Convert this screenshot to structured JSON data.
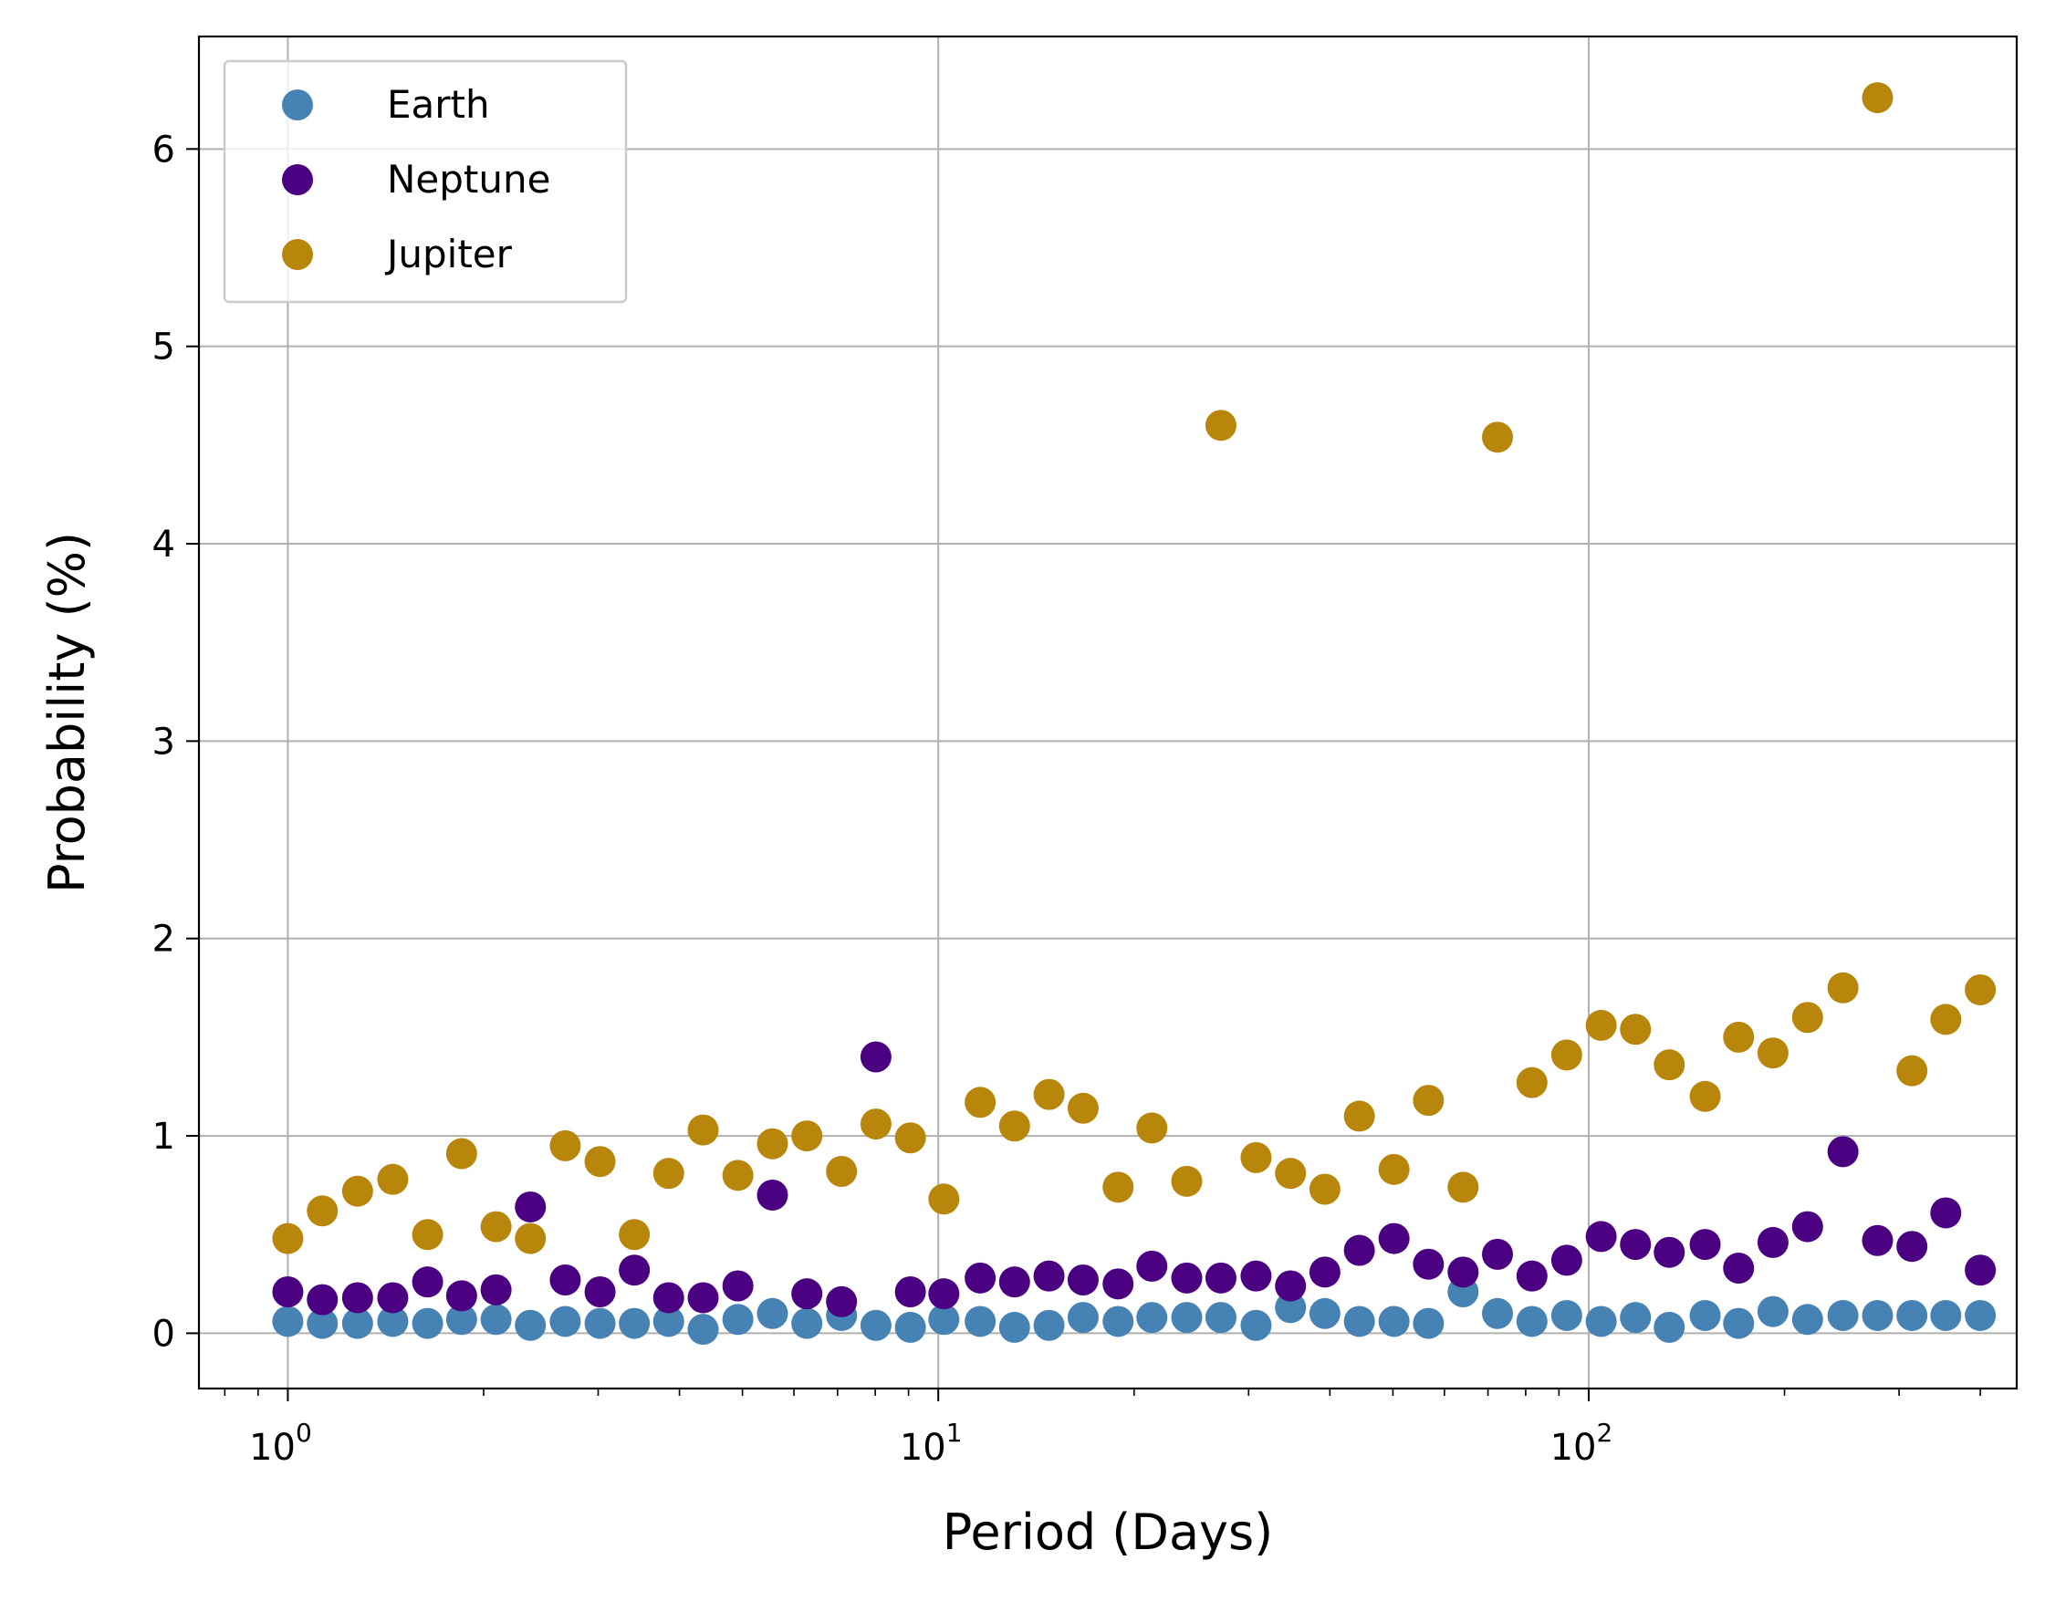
{
  "chart_data": {
    "type": "scatter",
    "title": "",
    "xlabel": "Period (Days)",
    "ylabel": "Probability (%)",
    "xscale": "log",
    "xlim": [
      0.73,
      455
    ],
    "ylim": [
      -0.28,
      6.57
    ],
    "grid": true,
    "legend_position": "top-left",
    "xticks": [
      {
        "value": 1,
        "base": "10",
        "exp": "0"
      },
      {
        "value": 10,
        "base": "10",
        "exp": "1"
      },
      {
        "value": 100,
        "base": "10",
        "exp": "2"
      }
    ],
    "yticks": [
      0,
      1,
      2,
      3,
      4,
      5,
      6
    ],
    "x": [
      1.0,
      1.13,
      1.28,
      1.45,
      1.64,
      1.85,
      2.09,
      2.36,
      2.67,
      3.02,
      3.41,
      3.85,
      4.35,
      4.92,
      5.56,
      6.28,
      7.1,
      8.02,
      9.06,
      10.2,
      11.6,
      13.1,
      14.8,
      16.7,
      18.9,
      21.3,
      24.1,
      27.2,
      30.8,
      34.8,
      39.3,
      44.4,
      50.2,
      56.7,
      64.1,
      72.4,
      81.8,
      92.5,
      104.5,
      118,
      133,
      151,
      170,
      192,
      217,
      246,
      278,
      314,
      354,
      400
    ],
    "series": [
      {
        "name": "Earth",
        "color": "#4682b4",
        "values": [
          0.06,
          0.05,
          0.05,
          0.06,
          0.05,
          0.07,
          0.07,
          0.04,
          0.06,
          0.05,
          0.05,
          0.06,
          0.02,
          0.07,
          0.1,
          0.05,
          0.09,
          0.04,
          0.03,
          0.07,
          0.06,
          0.03,
          0.04,
          0.08,
          0.06,
          0.08,
          0.08,
          0.08,
          0.04,
          0.13,
          0.1,
          0.06,
          0.06,
          0.05,
          0.21,
          0.1,
          0.06,
          0.09,
          0.06,
          0.08,
          0.03,
          0.09,
          0.05,
          0.11,
          0.07,
          0.09,
          0.09,
          0.09,
          0.09,
          0.09
        ]
      },
      {
        "name": "Neptune",
        "color": "#4b0082",
        "values": [
          0.21,
          0.17,
          0.18,
          0.18,
          0.26,
          0.19,
          0.22,
          0.64,
          0.27,
          0.21,
          0.32,
          0.18,
          0.18,
          0.24,
          0.7,
          0.2,
          0.16,
          1.4,
          0.21,
          0.2,
          0.28,
          0.26,
          0.29,
          0.27,
          0.25,
          0.34,
          0.28,
          0.28,
          0.29,
          0.24,
          0.31,
          0.42,
          0.48,
          0.35,
          0.31,
          0.4,
          0.29,
          0.37,
          0.49,
          0.45,
          0.41,
          0.45,
          0.33,
          0.46,
          0.54,
          0.92,
          0.47,
          0.44,
          0.61,
          0.32
        ]
      },
      {
        "name": "Jupiter",
        "color": "#b8860b",
        "values": [
          0.48,
          0.62,
          0.72,
          0.78,
          0.5,
          0.91,
          0.54,
          0.48,
          0.95,
          0.87,
          0.5,
          0.81,
          1.03,
          0.8,
          0.96,
          1.0,
          0.82,
          1.06,
          0.99,
          0.68,
          1.17,
          1.05,
          1.21,
          1.14,
          0.74,
          1.04,
          0.77,
          4.6,
          0.89,
          0.81,
          0.73,
          1.1,
          0.83,
          1.18,
          0.74,
          4.54,
          1.27,
          1.41,
          1.56,
          1.54,
          1.36,
          1.2,
          1.5,
          1.42,
          1.6,
          1.75,
          6.26,
          1.33,
          1.59,
          1.74
        ]
      }
    ]
  }
}
